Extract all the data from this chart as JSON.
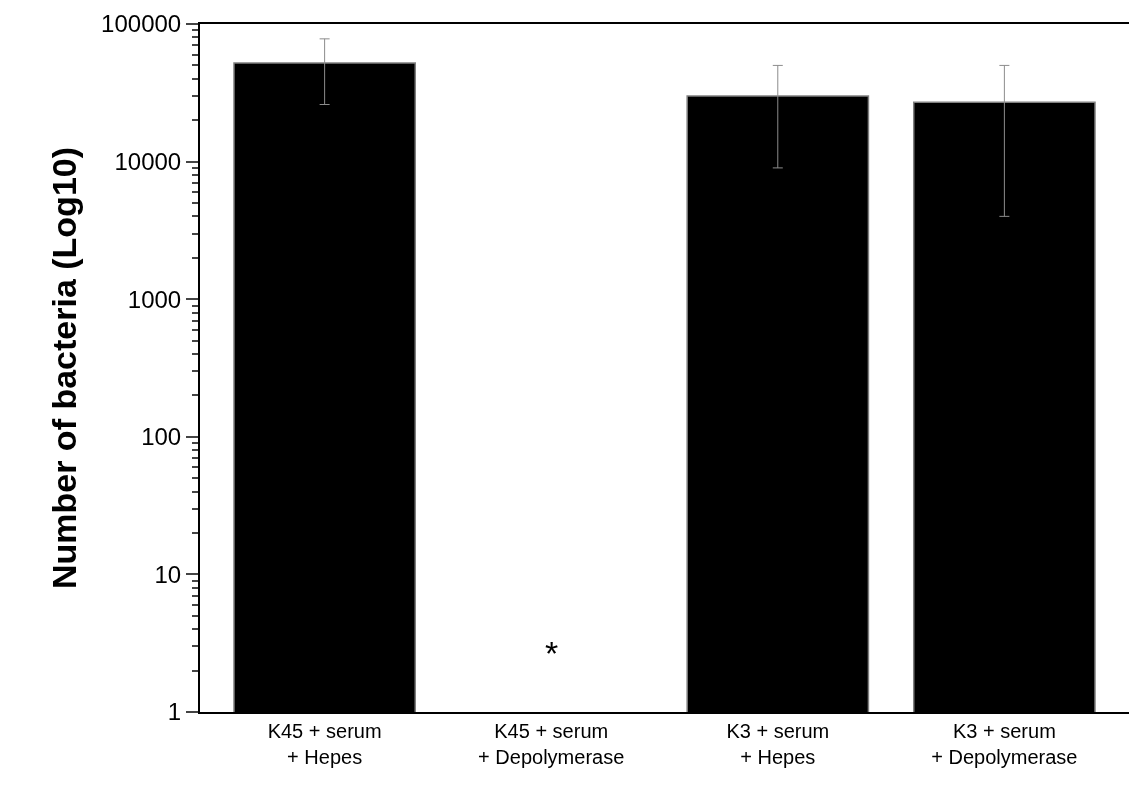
{
  "chart_data": {
    "type": "bar",
    "ylabel": "Number of bacteria (Log10)",
    "categories": [
      "K45 + serum\n+ Hepes",
      "K45 + serum\n+ Depolymerase",
      "K3 + serum\n+ Hepes",
      "K3 + serum\n+ Depolymerase"
    ],
    "values": [
      52000,
      null,
      30000,
      27000
    ],
    "errors": [
      [
        26000,
        78000
      ],
      null,
      [
        9000,
        50000
      ],
      [
        4000,
        50000
      ]
    ],
    "color": "#000000",
    "log": true,
    "ylim": [
      1,
      100000
    ],
    "yticks": [
      1,
      10,
      100,
      1000,
      10000,
      100000,
      {
        "value": 2,
        "label": null
      },
      {
        "value": 3,
        "label": null
      },
      {
        "value": 4,
        "label": null
      },
      {
        "value": 5,
        "label": null
      },
      {
        "value": 6,
        "label": null
      },
      {
        "value": 7,
        "label": null
      },
      {
        "value": 8,
        "label": null
      },
      {
        "value": 9,
        "label": null
      },
      {
        "value": 20,
        "label": null
      },
      {
        "value": 30,
        "label": null
      },
      {
        "value": 40,
        "label": null
      },
      {
        "value": 50,
        "label": null
      },
      {
        "value": 60,
        "label": null
      },
      {
        "value": 70,
        "label": null
      },
      {
        "value": 80,
        "label": null
      },
      {
        "value": 90,
        "label": null
      },
      {
        "value": 200,
        "label": null
      },
      {
        "value": 300,
        "label": null
      },
      {
        "value": 400,
        "label": null
      },
      {
        "value": 500,
        "label": null
      },
      {
        "value": 600,
        "label": null
      },
      {
        "value": 700,
        "label": null
      },
      {
        "value": 800,
        "label": null
      },
      {
        "value": 900,
        "label": null
      },
      {
        "value": 2000,
        "label": null
      },
      {
        "value": 3000,
        "label": null
      },
      {
        "value": 4000,
        "label": null
      },
      {
        "value": 5000,
        "label": null
      },
      {
        "value": 6000,
        "label": null
      },
      {
        "value": 7000,
        "label": null
      },
      {
        "value": 8000,
        "label": null
      },
      {
        "value": 9000,
        "label": null
      },
      {
        "value": 20000,
        "label": null
      },
      {
        "value": 30000,
        "label": null
      },
      {
        "value": 40000,
        "label": null
      },
      {
        "value": 50000,
        "label": null
      },
      {
        "value": 60000,
        "label": null
      },
      {
        "value": 70000,
        "label": null
      },
      {
        "value": 80000,
        "label": null
      },
      {
        "value": 90000,
        "label": null
      }
    ],
    "annotations": [
      "*"
    ],
    "legend": false
  }
}
